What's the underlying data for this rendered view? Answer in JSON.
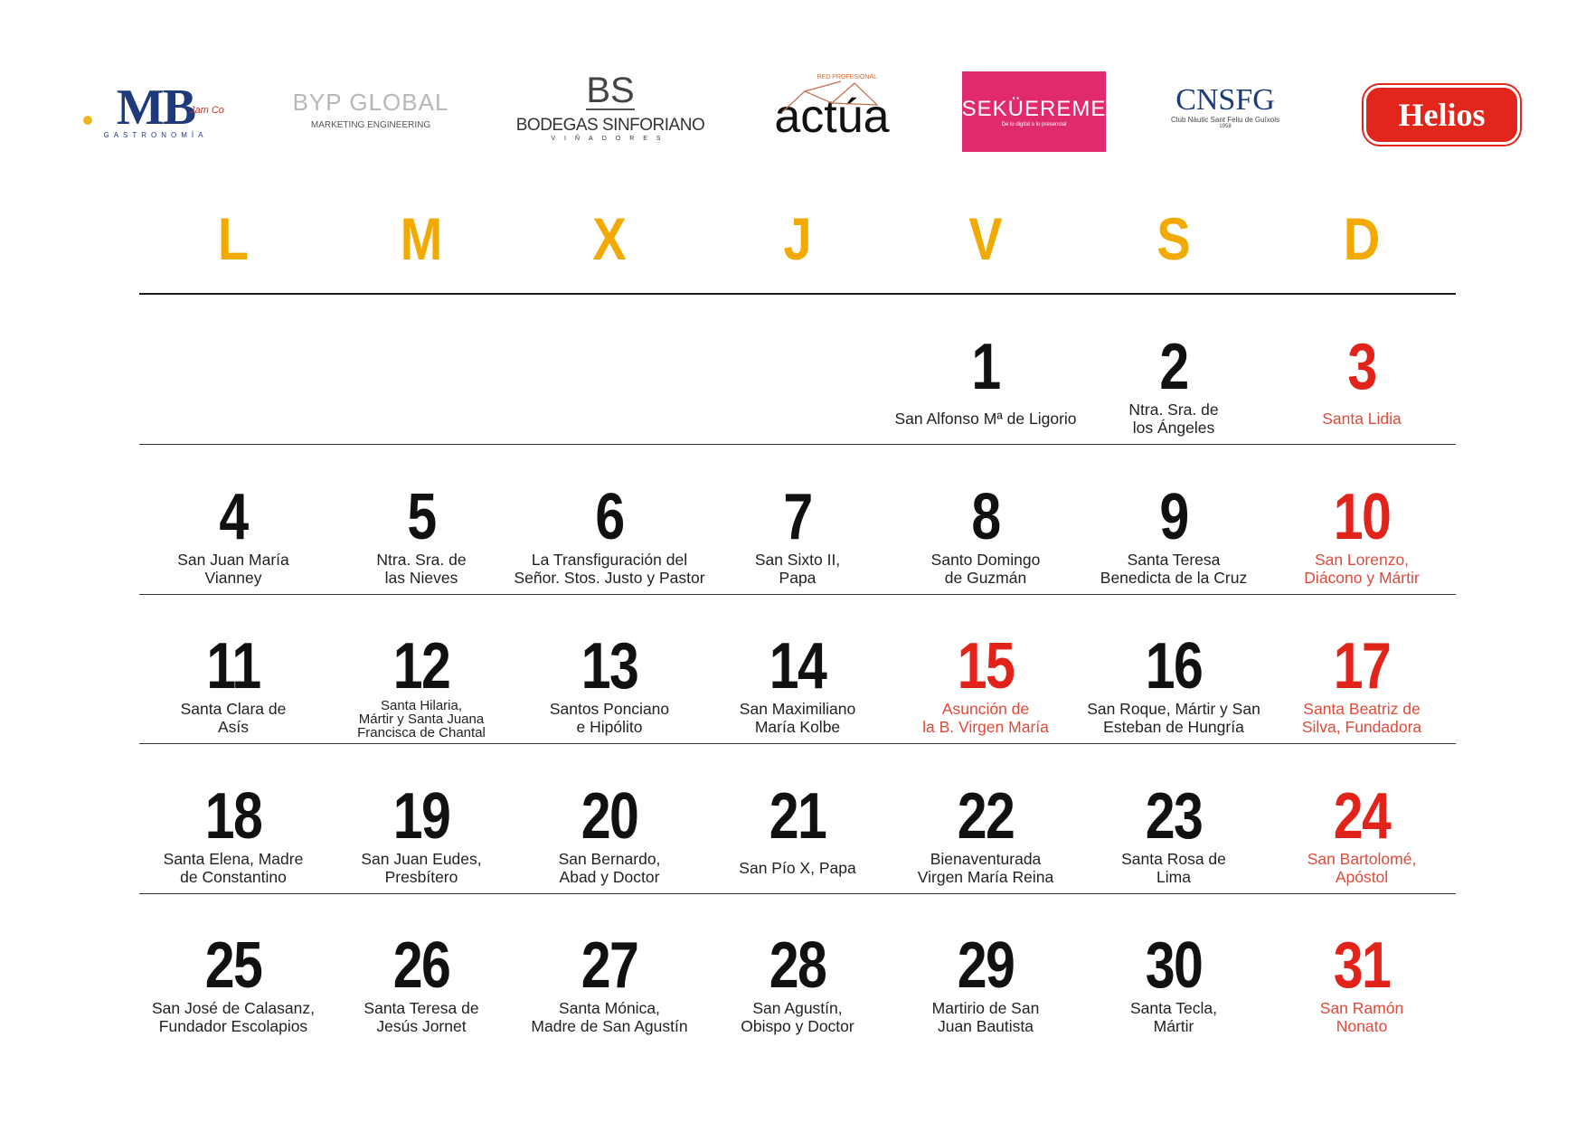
{
  "logos": {
    "mb": {
      "text": "MB",
      "sub": "GASTRONOMÍA",
      "partner": "Jam Co"
    },
    "byp": {
      "text": "BYP GLOBAL",
      "sub": "MARKETING ENGINEERING"
    },
    "bodegas": {
      "mark": "BS",
      "text": "BODEGAS SINFORIANO",
      "sub": "VIÑADORES"
    },
    "actua": {
      "tag": "RED PROFESIONAL",
      "text": "actúa"
    },
    "sekureme": {
      "text": "SEKÜEREME",
      "sub": "De lo digital a lo presencial"
    },
    "cnsfg": {
      "text": "CNSFG",
      "sub": "Club Nàutic Sant Feliu de Guíxols",
      "year": "1958"
    },
    "helios": {
      "text": "Helios"
    }
  },
  "colors": {
    "weekday_header": "#f2a900",
    "holiday": "#e2231a",
    "text": "#111111"
  },
  "weekdays": [
    "L",
    "M",
    "X",
    "J",
    "V",
    "S",
    "D"
  ],
  "weeks": [
    [
      null,
      null,
      null,
      null,
      {
        "day": "1",
        "saint": "San Alfonso Mª de Ligorio"
      },
      {
        "day": "2",
        "saint": "Ntra. Sra. de\nlos Ángeles"
      },
      {
        "day": "3",
        "saint": "Santa Lidia",
        "holiday": true
      }
    ],
    [
      {
        "day": "4",
        "saint": "San Juan María\nVianney"
      },
      {
        "day": "5",
        "saint": "Ntra. Sra. de\nlas Nieves"
      },
      {
        "day": "6",
        "saint": "La Transfiguración del\nSeñor. Stos. Justo y Pastor"
      },
      {
        "day": "7",
        "saint": "San Sixto II,\nPapa"
      },
      {
        "day": "8",
        "saint": "Santo Domingo\nde Guzmán"
      },
      {
        "day": "9",
        "saint": "Santa Teresa\nBenedicta de la Cruz"
      },
      {
        "day": "10",
        "saint": "San Lorenzo,\nDiácono y Mártir",
        "holiday": true
      }
    ],
    [
      {
        "day": "11",
        "saint": "Santa Clara de\nAsís"
      },
      {
        "day": "12",
        "saint": "Santa Hilaria,\nMártir y Santa Juana\nFrancisca de Chantal",
        "small": true
      },
      {
        "day": "13",
        "saint": "Santos Ponciano\ne Hipólito"
      },
      {
        "day": "14",
        "saint": "San Maximiliano\nMaría Kolbe"
      },
      {
        "day": "15",
        "saint": "Asunción de\nla B. Virgen María",
        "holiday": true
      },
      {
        "day": "16",
        "saint": "San Roque, Mártir y San\nEsteban de Hungría"
      },
      {
        "day": "17",
        "saint": "Santa Beatriz de\nSilva, Fundadora",
        "holiday": true
      }
    ],
    [
      {
        "day": "18",
        "saint": "Santa Elena, Madre\nde Constantino"
      },
      {
        "day": "19",
        "saint": "San Juan Eudes,\nPresbítero"
      },
      {
        "day": "20",
        "saint": "San Bernardo,\nAbad y Doctor"
      },
      {
        "day": "21",
        "saint": "San Pío X, Papa"
      },
      {
        "day": "22",
        "saint": "Bienaventurada\nVirgen María Reina"
      },
      {
        "day": "23",
        "saint": "Santa Rosa de\nLima"
      },
      {
        "day": "24",
        "saint": "San Bartolomé,\nApóstol",
        "holiday": true
      }
    ],
    [
      {
        "day": "25",
        "saint": "San José de Calasanz,\nFundador Escolapios"
      },
      {
        "day": "26",
        "saint": "Santa Teresa de\nJesús Jornet"
      },
      {
        "day": "27",
        "saint": "Santa Mónica,\nMadre de San Agustín"
      },
      {
        "day": "28",
        "saint": "San Agustín,\nObispo y Doctor"
      },
      {
        "day": "29",
        "saint": "Martirio de San\nJuan Bautista"
      },
      {
        "day": "30",
        "saint": "Santa Tecla,\nMártir"
      },
      {
        "day": "31",
        "saint": "San Ramón\nNonato",
        "holiday": true
      }
    ]
  ]
}
